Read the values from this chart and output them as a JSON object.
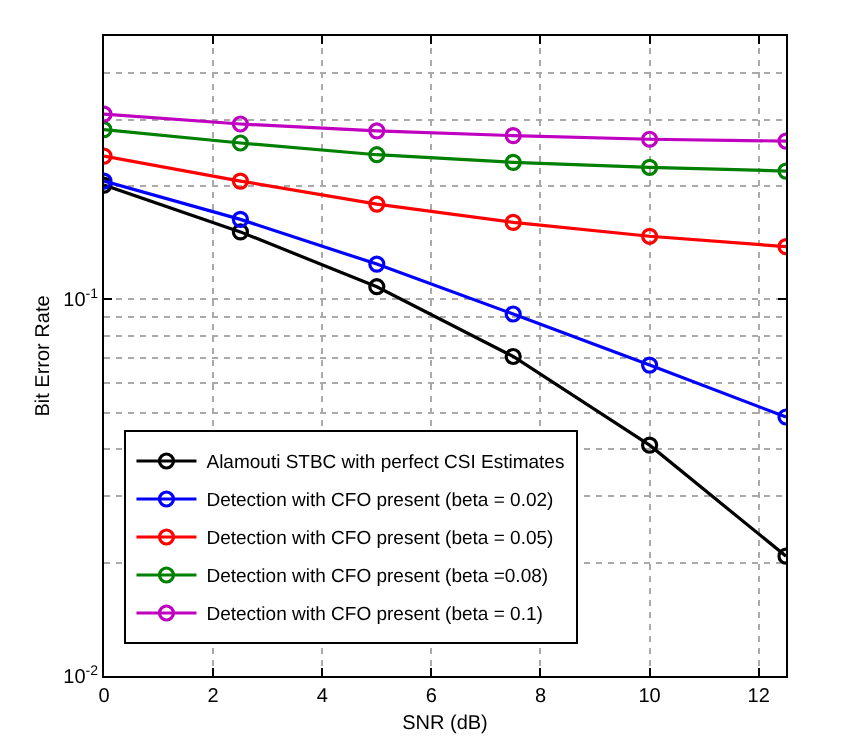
{
  "chart_data": {
    "type": "line",
    "xlabel": "SNR (dB)",
    "ylabel": "Bit Error Rate",
    "log": "y",
    "grid": true,
    "legend": "bottom left",
    "marker": "circle",
    "line_style": "solid",
    "x": [
      0,
      2.5,
      5,
      7.5,
      10,
      12.5
    ],
    "xlim": [
      0,
      12.5
    ],
    "xticks": [
      0,
      2,
      4,
      6,
      8,
      10,
      12
    ],
    "ylim": [
      0.01,
      0.5
    ],
    "yticks": [
      {
        "value": 0.01,
        "label": "10$^{-2}$"
      },
      {
        "value": 0.1,
        "label": "10$^{-1}$"
      }
    ],
    "series": [
      {
        "name": "Alamouti STBC with perfect CSI Estimates",
        "color": "#000000",
        "values": [
          0.201,
          0.151,
          0.108,
          0.0705,
          0.041,
          0.0208
        ]
      },
      {
        "name": "Detection with CFO present (beta = 0.02)",
        "color": "#0000ff",
        "values": [
          0.206,
          0.163,
          0.124,
          0.0914,
          0.0669,
          0.0487
        ]
      },
      {
        "name": "Detection with CFO present (beta = 0.05)",
        "color": "#ff0000",
        "values": [
          0.24,
          0.206,
          0.179,
          0.16,
          0.147,
          0.138
        ]
      },
      {
        "name": "Detection with CFO present (beta =0.08)",
        "color": "#008000",
        "values": [
          0.282,
          0.26,
          0.242,
          0.231,
          0.224,
          0.219
        ]
      },
      {
        "name": "Detection with CFO present (beta = 0.1)",
        "color": "#c000c0",
        "values": [
          0.31,
          0.292,
          0.28,
          0.272,
          0.266,
          0.263
        ]
      }
    ]
  }
}
